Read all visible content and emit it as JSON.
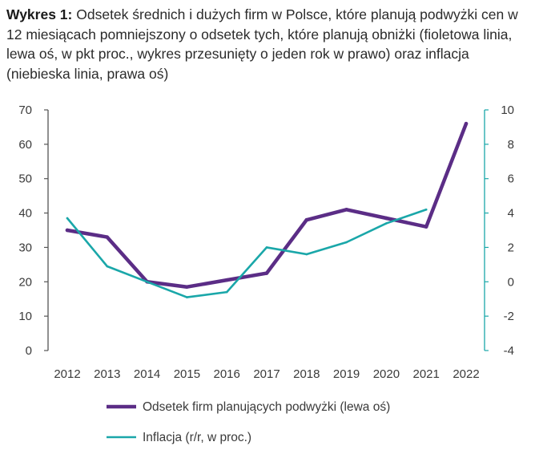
{
  "title": {
    "bold": "Wykres 1:",
    "text": " Odsetek średnich i dużych firm w Polsce, które planują podwyżki cen w 12 miesiącach pomniejszony o odsetek tych, które planują obniżki (fioletowa linia, lewa oś, w pkt proc., wykres przesunięty o jeden rok w prawo) oraz inflacja (niebieska linia, prawa oś)"
  },
  "chart_data": {
    "type": "line",
    "categories": [
      "2012",
      "2013",
      "2014",
      "2015",
      "2016",
      "2017",
      "2018",
      "2019",
      "2020",
      "2021",
      "2022"
    ],
    "left_axis": {
      "min": 0,
      "max": 70,
      "ticks": [
        "0",
        "10",
        "20",
        "30",
        "40",
        "50",
        "60",
        "70"
      ]
    },
    "right_axis": {
      "min": -4,
      "max": 10,
      "ticks": [
        "-4",
        "-2",
        "0",
        "2",
        "4",
        "6",
        "8",
        "10"
      ]
    },
    "series": [
      {
        "name": "Odsetek firm planujących podwyżki (lewa oś)",
        "axis": "left",
        "color": "#5b2d86",
        "values": [
          35,
          33,
          20,
          18.5,
          20.5,
          22.5,
          38,
          41,
          38.5,
          36,
          66
        ]
      },
      {
        "name": "Inflacja (r/r, w proc.)",
        "axis": "right",
        "color": "#1aa7a9",
        "values": [
          3.7,
          0.9,
          0.0,
          -0.9,
          -0.6,
          2.0,
          1.6,
          2.3,
          3.4,
          4.2,
          null
        ]
      }
    ],
    "colors": {
      "left_axis": "#555555",
      "right_axis": "#1aa7a9",
      "violet": "#5b2d86",
      "teal": "#1aa7a9"
    }
  }
}
